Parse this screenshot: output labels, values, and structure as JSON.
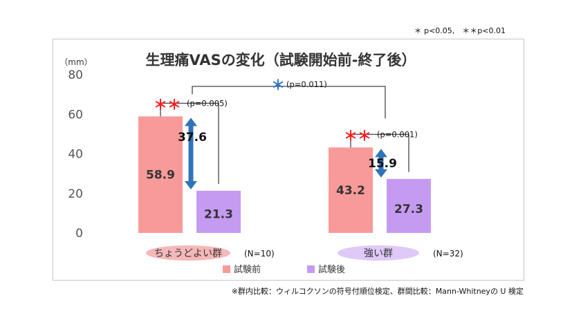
{
  "significance_note": "＊ p<0.05,　＊＊p<0.01",
  "footnote": "※群内比較：ウィルコクソンの符号付順位検定、群間比較：Mann-Whitneyの U 検定",
  "chart_data": {
    "type": "bar",
    "title": "生理痛VASの変化（試験開始前-終了後）",
    "ylabel": "（mm）",
    "ylim": [
      0,
      80
    ],
    "yticks": [
      "0",
      "20",
      "40",
      "60",
      "80"
    ],
    "categories": [
      "ちょうどよい群",
      "強い群"
    ],
    "category_n": [
      "(N=10)",
      "(N=32)"
    ],
    "series": [
      {
        "name": "試験前",
        "values": [
          58.9,
          43.2
        ],
        "labels": [
          "58.9",
          "43.2"
        ],
        "color": "#f99a9a"
      },
      {
        "name": "試験後",
        "values": [
          21.3,
          27.3
        ],
        "labels": [
          "21.3",
          "27.3"
        ],
        "color": "#c59bf2"
      }
    ],
    "differences": [
      {
        "value": 37.6,
        "label": "37.6",
        "marker": "＊＊",
        "p": "(p=0.005)"
      },
      {
        "value": 15.9,
        "label": "15.9",
        "marker": "＊＊",
        "p": "(p=0.001)"
      }
    ],
    "between_groups": {
      "marker": "＊",
      "p": "(p=0.011)"
    },
    "colors": {
      "frame": "#c7c7c7",
      "category_pill_1": "#f5b8b8",
      "category_pill_2": "#e0c8f7",
      "arrow": "#2f74b9",
      "bracket": "#444444",
      "sig_red": "#ff1a1a",
      "sig_blue": "#2e74c7"
    }
  }
}
